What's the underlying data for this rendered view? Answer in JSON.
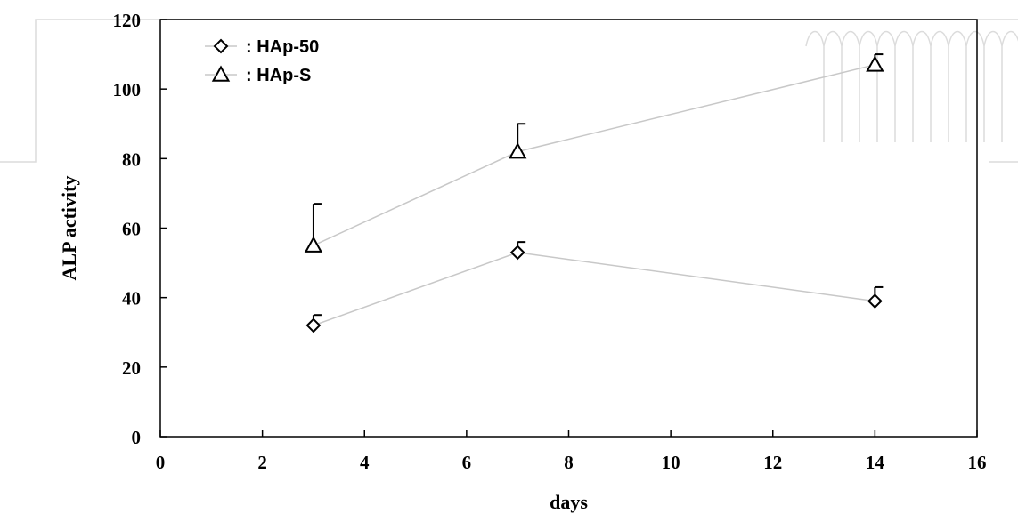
{
  "chart_data": {
    "type": "line",
    "title": "",
    "xlabel": "days",
    "ylabel": "ALP activity",
    "xlim": [
      0,
      16
    ],
    "ylim": [
      0,
      120
    ],
    "x_ticks": [
      "0",
      "2",
      "4",
      "6",
      "8",
      "10",
      "12",
      "14",
      "16"
    ],
    "y_ticks": [
      "0",
      "20",
      "40",
      "60",
      "80",
      "100",
      "120"
    ],
    "grid": false,
    "legend_position": "top-left",
    "series": [
      {
        "name": ": HAp-50",
        "marker": "diamond",
        "x": [
          3,
          7,
          14
        ],
        "y": [
          32,
          53,
          39
        ],
        "error": [
          3,
          3,
          4
        ]
      },
      {
        "name": ": HAp-S",
        "marker": "triangle",
        "x": [
          3,
          7,
          14
        ],
        "y": [
          55,
          82,
          107
        ],
        "error": [
          12,
          8,
          3
        ]
      }
    ],
    "colors": {
      "line": "#c8c8c8",
      "marker": "#000000",
      "axis": "#000000"
    }
  },
  "decoration": {
    "watermark_color": "#dcdcdc"
  }
}
